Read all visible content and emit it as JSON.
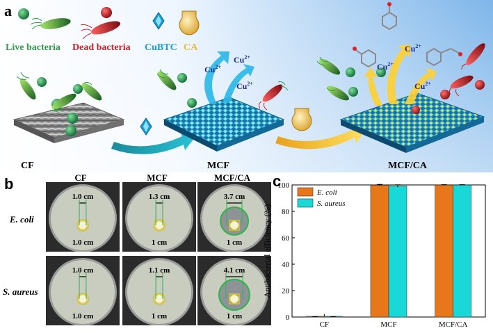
{
  "panel_a": {
    "letter": "a",
    "legend": {
      "live": "Live bacteria",
      "dead": "Dead bacteria",
      "cubtc": "CuBTC",
      "ca": "CA"
    },
    "ion": "Cu",
    "ion_charge": "2+",
    "fabric_labels": {
      "cf": "CF",
      "mcf": "MCF",
      "mcfca": "MCF/CA"
    },
    "colors": {
      "live": "#2e9e4a",
      "dead": "#c8242a",
      "cubtc": "#1aa0d8",
      "ca": "#e8b840",
      "ion": "#1f2a8a"
    }
  },
  "panel_b": {
    "letter": "b",
    "columns": [
      "CF",
      "MCF",
      "MCF/CA"
    ],
    "rows": [
      "E. coli",
      "S. aureus"
    ],
    "dishes": [
      {
        "zone": "1.0 cm",
        "disc": "1.0 cm",
        "halo_fraction": 0.27
      },
      {
        "zone": "1.3 cm",
        "disc": "1 cm",
        "halo_fraction": 0.35
      },
      {
        "zone": "3.7 cm",
        "disc": "1 cm",
        "halo_fraction": 1.0
      },
      {
        "zone": "1.0 cm",
        "disc": "1.0 cm",
        "halo_fraction": 0.27
      },
      {
        "zone": "1.1 cm",
        "disc": "1 cm",
        "halo_fraction": 0.3
      },
      {
        "zone": "4.1 cm",
        "disc": "1 cm",
        "halo_fraction": 1.1
      }
    ]
  },
  "panel_c": {
    "letter": "c"
  },
  "chart_data": {
    "type": "bar",
    "categories": [
      "CF",
      "MCF",
      "MCF/CA"
    ],
    "series": [
      {
        "name": "E. coli",
        "values": [
          0,
          99.8,
          99.9
        ],
        "errors": [
          0.3,
          0.6,
          0.3
        ],
        "color": "#e8761a"
      },
      {
        "name": "S. aureus",
        "values": [
          0,
          99.2,
          99.9
        ],
        "errors": [
          0.3,
          0.9,
          0.3
        ],
        "color": "#1ad8d8"
      }
    ],
    "xlabel": "",
    "ylabel": "Antibacterial efficiency (%)",
    "ylim": [
      0,
      100
    ],
    "yticks": [
      0,
      20,
      40,
      60,
      80,
      100
    ],
    "legend_position": "top-left",
    "grid": false
  }
}
